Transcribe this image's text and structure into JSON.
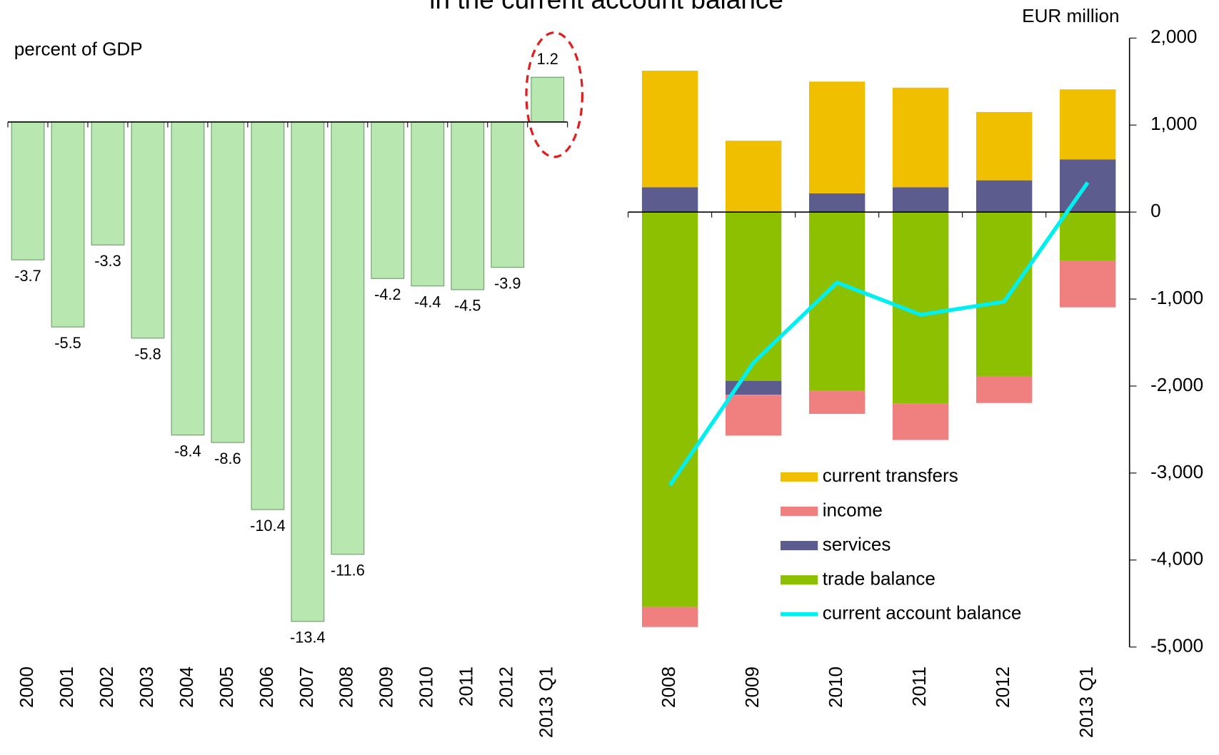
{
  "title": "in the current account balance",
  "chart_data": [
    {
      "type": "bar",
      "ylabel": "percent of GDP",
      "categories": [
        "2000",
        "2001",
        "2002",
        "2003",
        "2004",
        "2005",
        "2006",
        "2007",
        "2008",
        "2009",
        "2010",
        "2011",
        "2012",
        "2013 Q1"
      ],
      "values": [
        -3.7,
        -5.5,
        -3.3,
        -5.8,
        -8.4,
        -8.6,
        -10.4,
        -13.4,
        -11.6,
        -4.2,
        -4.4,
        -4.5,
        -3.9,
        1.2
      ],
      "color": "#b8e8b0"
    },
    {
      "type": "stacked_bar_line",
      "ylabel": "EUR million",
      "categories": [
        "2008",
        "2009",
        "2010",
        "2011",
        "2012",
        "2013 Q1"
      ],
      "series": [
        {
          "name": "current transfers",
          "color": "#f0bf00",
          "values": [
            1340,
            820,
            1285,
            1145,
            785,
            805
          ]
        },
        {
          "name": "income",
          "color": "#f08080",
          "values": [
            -230,
            -470,
            -270,
            -420,
            -310,
            -535
          ]
        },
        {
          "name": "services",
          "color": "#5c5c8e",
          "values": [
            285,
            -160,
            215,
            285,
            365,
            605
          ]
        },
        {
          "name": "trade balance",
          "color": "#8cc000",
          "values": [
            -4540,
            -1940,
            -2050,
            -2200,
            -1885,
            -560
          ]
        },
        {
          "name": "current account balance",
          "color": "#00f0f0",
          "type": "line",
          "values": [
            -3140,
            -1730,
            -810,
            -1180,
            -1030,
            340
          ]
        }
      ],
      "ylim": [
        -5000,
        2000
      ],
      "yticks": [
        {
          "value": 2000,
          "label": "2,000"
        },
        {
          "value": 1000,
          "label": "1,000"
        },
        0,
        {
          "value": -1000,
          "label": "-1,000"
        },
        {
          "value": -2000,
          "label": "-2,000"
        },
        {
          "value": -3000,
          "label": "-3,000"
        },
        {
          "value": -4000,
          "label": "-4,000"
        },
        {
          "value": -5000,
          "label": "-5,000"
        }
      ]
    }
  ]
}
